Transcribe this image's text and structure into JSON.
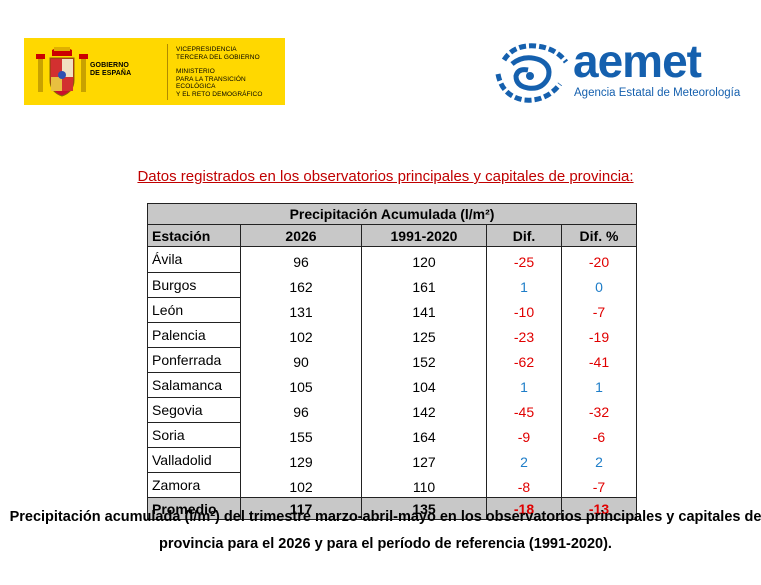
{
  "government": {
    "name": "GOBIERNO\nDE ESPAÑA",
    "vicepresidency": "VICEPRESIDENCIA\nTERCERA DEL GOBIERNO",
    "ministry": "MINISTERIO\nPARA LA TRANSICIÓN ECOLÓGICA\nY EL RETO DEMOGRÁFICO",
    "banner_color": "#ffd800"
  },
  "aemet": {
    "brand": "aemet",
    "agency": "Agencia Estatal de Meteorología",
    "color": "#1560ae"
  },
  "subtitle": "Datos registrados en los observatorios principales y capitales de provincia:",
  "table": {
    "title": "Precipitación Acumulada (l/m²)",
    "headers": [
      "Estación",
      "2026",
      "1991-2020",
      "Dif.",
      "Dif. %"
    ],
    "rows": [
      {
        "station": "Ávila",
        "y2026": "96",
        "ref": "120",
        "dif": "-25",
        "difp": "-20"
      },
      {
        "station": "Burgos",
        "y2026": "162",
        "ref": "161",
        "dif": "1",
        "difp": "0"
      },
      {
        "station": "León",
        "y2026": "131",
        "ref": "141",
        "dif": "-10",
        "difp": "-7"
      },
      {
        "station": "Palencia",
        "y2026": "102",
        "ref": "125",
        "dif": "-23",
        "difp": "-19"
      },
      {
        "station": "Ponferrada",
        "y2026": "90",
        "ref": "152",
        "dif": "-62",
        "difp": "-41"
      },
      {
        "station": "Salamanca",
        "y2026": "105",
        "ref": "104",
        "dif": "1",
        "difp": "1"
      },
      {
        "station": "Segovia",
        "y2026": "96",
        "ref": "142",
        "dif": "-45",
        "difp": "-32"
      },
      {
        "station": "Soria",
        "y2026": "155",
        "ref": "164",
        "dif": "-9",
        "difp": "-6"
      },
      {
        "station": "Valladolid",
        "y2026": "129",
        "ref": "127",
        "dif": "2",
        "difp": "2"
      },
      {
        "station": "Zamora",
        "y2026": "102",
        "ref": "110",
        "dif": "-8",
        "difp": "-7"
      }
    ],
    "average": {
      "station": "Promedio",
      "y2026": "117",
      "ref": "135",
      "dif": "-18",
      "difp": "-13"
    },
    "colors": {
      "negative": "#e00000",
      "positive": "#1e7dc8",
      "header_bg": "#c8c8c8"
    }
  },
  "caption": "Precipitación acumulada (l/m²) del trimestre marzo-abril-mayo en los observatorios principales y capitales de provincia para el 2026 y para el período de referencia (1991-2020)."
}
